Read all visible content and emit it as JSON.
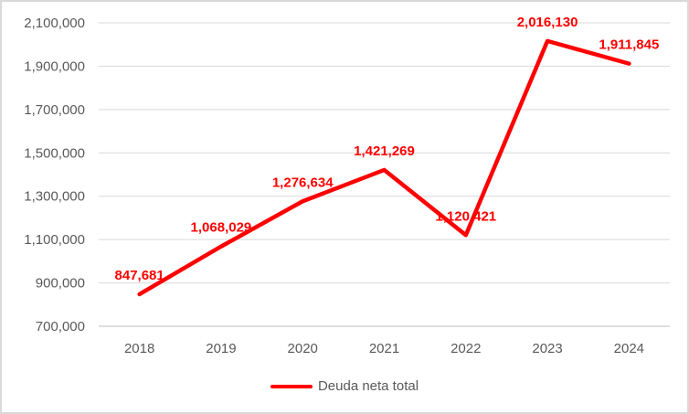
{
  "chart_data": {
    "type": "line",
    "categories": [
      "2018",
      "2019",
      "2020",
      "2021",
      "2022",
      "2023",
      "2024"
    ],
    "series": [
      {
        "name": "Deuda neta total",
        "values": [
          847681,
          1068029,
          1276634,
          1421269,
          1120421,
          2016130,
          1911845
        ],
        "color": "#ff0000"
      }
    ],
    "data_labels": [
      "847,681",
      "1,068,029",
      "1,276,634",
      "1,421,269",
      "1,120,421",
      "2,016,130",
      "1,911,845"
    ],
    "y_ticks": [
      "700,000",
      "900,000",
      "1,100,000",
      "1,300,000",
      "1,500,000",
      "1,700,000",
      "1,900,000",
      "2,100,000"
    ],
    "ylim": [
      700000,
      2100000
    ],
    "y_tick_step": 200000,
    "grid": true,
    "legend_position": "bottom",
    "title": "",
    "xlabel": "",
    "ylabel": ""
  },
  "colors": {
    "series": "#ff0000",
    "data_label": "#ff0000",
    "axis_text": "#595959",
    "gridline": "#d9d9d9",
    "axis_line": "#bfbfbf",
    "border": "#d9d9d9",
    "background": "#ffffff"
  }
}
